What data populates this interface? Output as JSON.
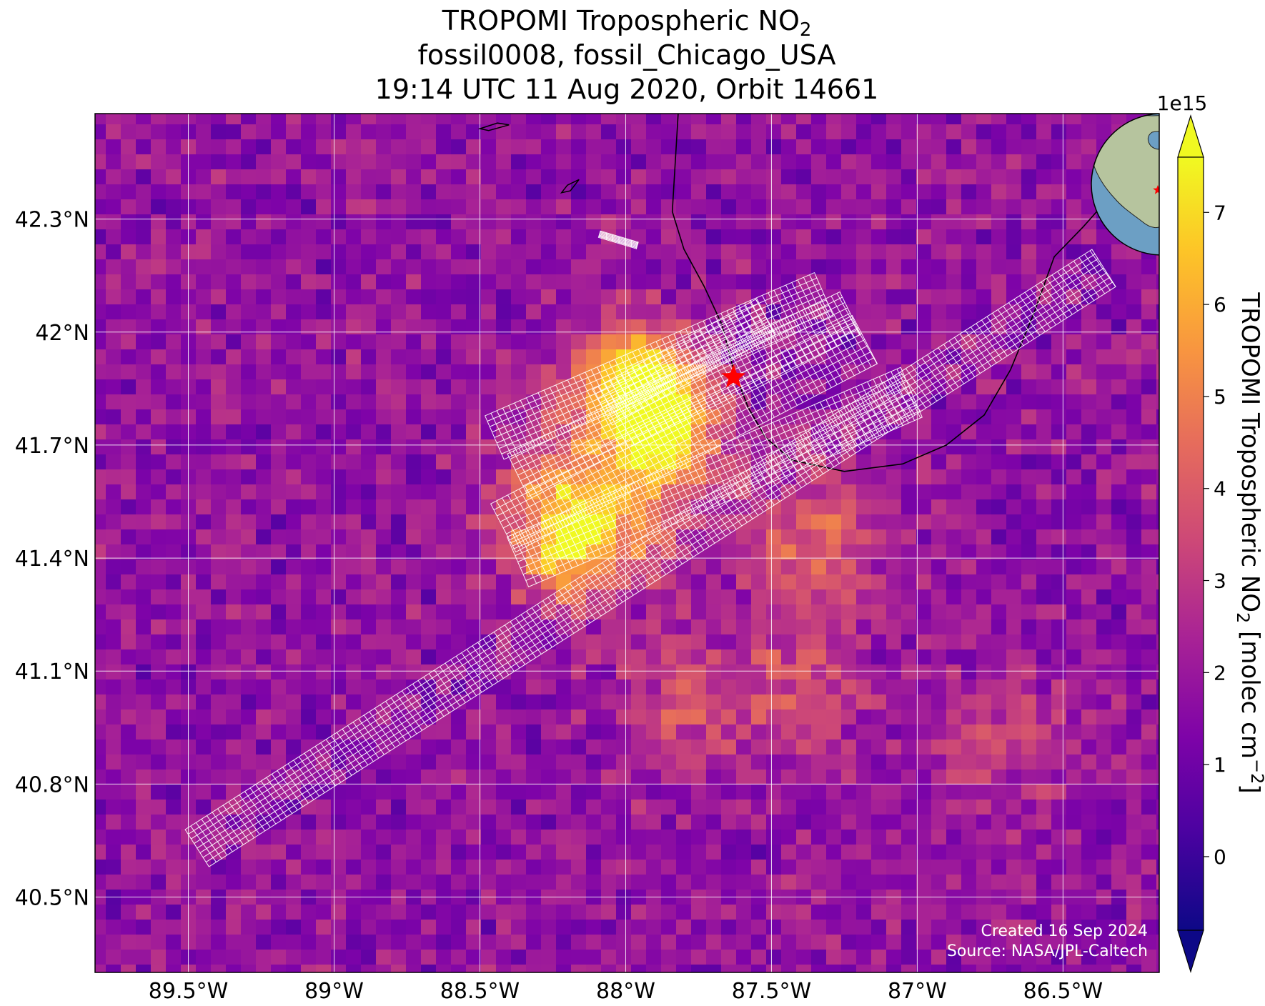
{
  "title": {
    "line1_prefix": "TROPOMI Tropospheric NO",
    "line1_sub": "2",
    "line2": "fossil0008, fossil_Chicago_USA",
    "line3": "19:14 UTC 11 Aug 2020, Orbit 14661"
  },
  "chart_data": {
    "type": "heatmap",
    "map_extent": {
      "lon": [
        -89.82,
        -86.17
      ],
      "lat": [
        40.3,
        42.58
      ]
    },
    "lon_ticks": [
      {
        "value": -89.5,
        "label": "89.5°W"
      },
      {
        "value": -89.0,
        "label": "89°W"
      },
      {
        "value": -88.5,
        "label": "88.5°W"
      },
      {
        "value": -88.0,
        "label": "88°W"
      },
      {
        "value": -87.5,
        "label": "87.5°W"
      },
      {
        "value": -87.0,
        "label": "87°W"
      },
      {
        "value": -86.5,
        "label": "86.5°W"
      }
    ],
    "lat_ticks": [
      {
        "value": 42.3,
        "label": "42.3°N"
      },
      {
        "value": 42.0,
        "label": "42°N"
      },
      {
        "value": 41.7,
        "label": "41.7°N"
      },
      {
        "value": 41.4,
        "label": "41.4°N"
      },
      {
        "value": 41.1,
        "label": "41.1°N"
      },
      {
        "value": 40.8,
        "label": "40.8°N"
      },
      {
        "value": 40.5,
        "label": "40.5°N"
      }
    ],
    "grid": true,
    "colormap": "plasma",
    "colorbar": {
      "label_prefix": "TROPOMI Tropospheric NO",
      "label_sub": "2",
      "label_units": " [molec cm",
      "label_sup": "−2",
      "label_end": "]",
      "offset_label": "1e15",
      "range": [
        -0.8,
        7.6
      ],
      "ticks": [
        {
          "value": 0,
          "label": "0"
        },
        {
          "value": 1,
          "label": "1"
        },
        {
          "value": 2,
          "label": "2"
        },
        {
          "value": 3,
          "label": "3"
        },
        {
          "value": 4,
          "label": "4"
        },
        {
          "value": 5,
          "label": "5"
        },
        {
          "value": 6,
          "label": "6"
        },
        {
          "value": 7,
          "label": "7"
        }
      ],
      "extend": "both"
    },
    "background_level": 1.8,
    "hotspots": [
      {
        "lon": -87.95,
        "lat": 41.88,
        "peak": 5.0,
        "sigma": 0.13
      },
      {
        "lon": -87.85,
        "lat": 41.75,
        "peak": 4.0,
        "sigma": 0.12
      },
      {
        "lon": -88.2,
        "lat": 41.45,
        "peak": 4.5,
        "sigma": 0.13
      },
      {
        "lon": -88.05,
        "lat": 41.6,
        "peak": 3.2,
        "sigma": 0.22
      },
      {
        "lon": -87.35,
        "lat": 41.45,
        "peak": 2.5,
        "sigma": 0.16
      },
      {
        "lon": -87.4,
        "lat": 41.05,
        "peak": 1.8,
        "sigma": 0.16
      },
      {
        "lon": -87.8,
        "lat": 41.0,
        "peak": 1.5,
        "sigma": 0.18
      },
      {
        "lon": -86.7,
        "lat": 40.9,
        "peak": 1.2,
        "sigma": 0.18
      }
    ],
    "target": {
      "lon": -87.63,
      "lat": 41.88,
      "marker": "red-star"
    },
    "oco_target_swaths": [
      {
        "name": "swath-main",
        "from": {
          "lon": -89.47,
          "lat": 40.63
        },
        "to": {
          "lon": -86.36,
          "lat": 42.17
        },
        "width_km": 13
      },
      {
        "name": "swath-sam-1",
        "from": {
          "lon": -88.37,
          "lat": 41.39
        },
        "to": {
          "lon": -87.02,
          "lat": 41.84
        },
        "width_km": 16
      },
      {
        "name": "swath-sam-2",
        "from": {
          "lon": -88.42,
          "lat": 41.48
        },
        "to": {
          "lon": -87.18,
          "lat": 41.98
        },
        "width_km": 16
      },
      {
        "name": "swath-sam-3",
        "from": {
          "lon": -88.37,
          "lat": 41.62
        },
        "to": {
          "lon": -87.23,
          "lat": 42.05
        },
        "width_km": 14
      },
      {
        "name": "swath-sam-4",
        "from": {
          "lon": -88.45,
          "lat": 41.72
        },
        "to": {
          "lon": -87.32,
          "lat": 42.1
        },
        "width_km": 14
      },
      {
        "name": "swath-sam-5",
        "from": {
          "lon": -88.08,
          "lat": 41.8
        },
        "to": {
          "lon": -87.52,
          "lat": 42.04
        },
        "width_km": 12
      },
      {
        "name": "swath-fragment",
        "from": {
          "lon": -88.09,
          "lat": 42.26
        },
        "to": {
          "lon": -87.96,
          "lat": 42.23
        },
        "width_km": 2
      }
    ],
    "coastline": [
      [
        -87.82,
        42.58
      ],
      [
        -87.83,
        42.45
      ],
      [
        -87.84,
        42.32
      ],
      [
        -87.8,
        42.22
      ],
      [
        -87.73,
        42.12
      ],
      [
        -87.67,
        42.02
      ],
      [
        -87.63,
        41.9
      ],
      [
        -87.58,
        41.8
      ],
      [
        -87.52,
        41.72
      ],
      [
        -87.43,
        41.66
      ],
      [
        -87.25,
        41.63
      ],
      [
        -87.05,
        41.65
      ],
      [
        -86.9,
        41.7
      ],
      [
        -86.77,
        41.78
      ],
      [
        -86.68,
        41.9
      ],
      [
        -86.6,
        42.05
      ],
      [
        -86.53,
        42.2
      ],
      [
        -86.43,
        42.28
      ],
      [
        -86.35,
        42.35
      ]
    ],
    "small_lakes": [
      [
        [
          -88.5,
          42.54
        ],
        [
          -88.44,
          42.555
        ],
        [
          -88.4,
          42.55
        ],
        [
          -88.47,
          42.535
        ]
      ],
      [
        [
          -88.2,
          42.39
        ],
        [
          -88.16,
          42.405
        ],
        [
          -88.19,
          42.375
        ],
        [
          -88.22,
          42.37
        ]
      ]
    ],
    "inset_globe": {
      "center": {
        "lon": -95,
        "lat": 40
      },
      "target_marker": "red-star"
    }
  },
  "credits": {
    "line1": "Created 16 Sep 2024",
    "line2": "Source: NASA/JPL-Caltech"
  },
  "colors": {
    "grid": "#ffffff",
    "swath_outline": "#ffffff",
    "coastline": "#000000",
    "star": "#ff0000",
    "ocean": "#6c9fc4",
    "land": "#b6c49e"
  }
}
